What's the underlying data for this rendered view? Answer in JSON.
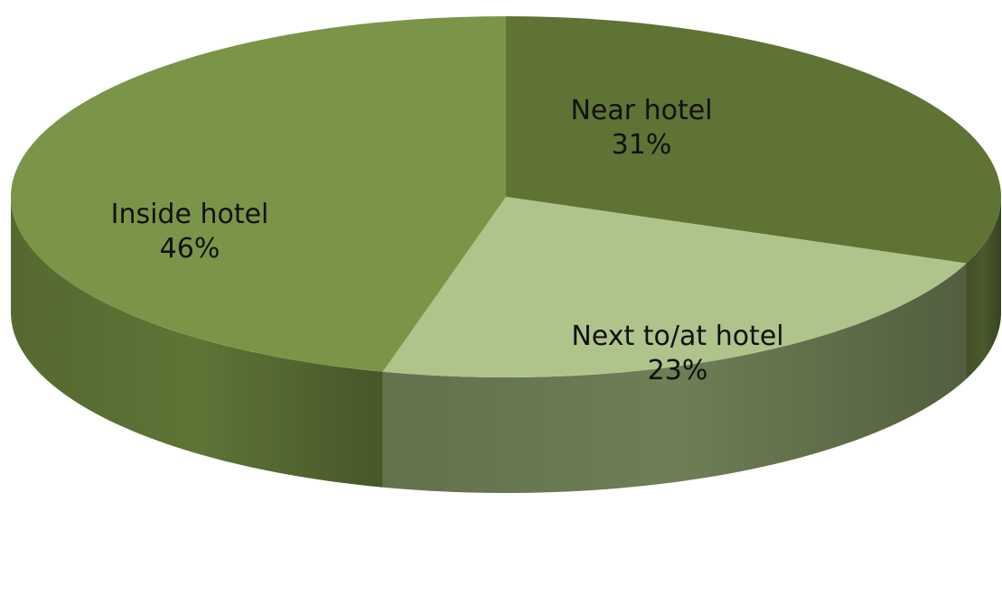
{
  "chart_data": {
    "type": "pie",
    "style": "3d",
    "slices": [
      {
        "label": "Inside hotel",
        "value": 46,
        "value_label": "46%",
        "color": "#7B9548",
        "side_color": "#5E7436"
      },
      {
        "label": "Near hotel",
        "value": 31,
        "value_label": "31%",
        "color": "#5F7335",
        "side_color": "#4A582C"
      },
      {
        "label": "Next to/at hotel",
        "value": 23,
        "value_label": "23%",
        "color": "#AFC48A",
        "side_color": "#6E7E55"
      }
    ],
    "legend": "none"
  }
}
